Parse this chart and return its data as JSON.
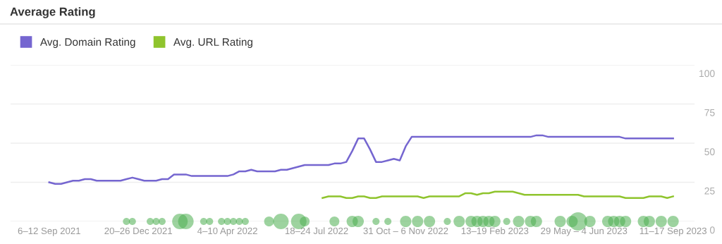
{
  "chart_data": {
    "type": "line",
    "title": "Average Rating",
    "categories": [
      "6–12 Sep 2021",
      null,
      null,
      null,
      null,
      null,
      null,
      null,
      null,
      null,
      null,
      null,
      null,
      null,
      null,
      "20–26 Dec 2021",
      null,
      null,
      null,
      null,
      null,
      null,
      null,
      null,
      null,
      null,
      null,
      null,
      null,
      null,
      "4–10 Apr 2022",
      null,
      null,
      null,
      null,
      null,
      null,
      null,
      null,
      null,
      null,
      null,
      null,
      null,
      null,
      "18–24 Jul 2022",
      null,
      null,
      null,
      null,
      null,
      null,
      null,
      null,
      null,
      null,
      null,
      null,
      null,
      null,
      "31 Oct – 6 Nov 2022",
      null,
      null,
      null,
      null,
      null,
      null,
      null,
      null,
      null,
      null,
      null,
      null,
      null,
      null,
      "13–19 Feb 2023",
      null,
      null,
      null,
      null,
      null,
      null,
      null,
      null,
      null,
      null,
      null,
      null,
      null,
      null,
      "29 May – 4 Jun 2023",
      null,
      null,
      null,
      null,
      null,
      null,
      null,
      null,
      null,
      null,
      null,
      null,
      null,
      null,
      "11–17 Sep 2023"
    ],
    "series": [
      {
        "name": "Avg. Domain Rating",
        "color": "#7566d0",
        "values": [
          25,
          24,
          24,
          25,
          26,
          26,
          27,
          27,
          26,
          26,
          26,
          26,
          26,
          27,
          28,
          27,
          26,
          26,
          26,
          27,
          27,
          30,
          30,
          30,
          29,
          29,
          29,
          29,
          29,
          29,
          29,
          30,
          32,
          32,
          33,
          32,
          32,
          32,
          32,
          33,
          33,
          34,
          35,
          36,
          36,
          36,
          36,
          36,
          37,
          37,
          38,
          45,
          53,
          53,
          46,
          38,
          38,
          39,
          40,
          39,
          48,
          54,
          54,
          54,
          54,
          54,
          54,
          54,
          54,
          54,
          54,
          54,
          54,
          54,
          54,
          54,
          54,
          54,
          54,
          54,
          54,
          54,
          55,
          55,
          54,
          54,
          54,
          54,
          54,
          54,
          54,
          54,
          54,
          54,
          54,
          54,
          54,
          53,
          53,
          53,
          53,
          53,
          53,
          53,
          53,
          53
        ]
      },
      {
        "name": "Avg. URL Rating",
        "color": "#8fc42d",
        "values": [
          null,
          null,
          null,
          null,
          null,
          null,
          null,
          null,
          null,
          null,
          null,
          null,
          null,
          null,
          null,
          null,
          null,
          null,
          null,
          null,
          null,
          null,
          null,
          null,
          null,
          null,
          null,
          null,
          null,
          null,
          null,
          null,
          null,
          null,
          null,
          null,
          null,
          null,
          null,
          null,
          null,
          null,
          null,
          null,
          null,
          null,
          15,
          16,
          16,
          16,
          15,
          15,
          16,
          16,
          15,
          15,
          16,
          16,
          16,
          16,
          16,
          16,
          16,
          15,
          16,
          16,
          16,
          16,
          16,
          16,
          18,
          18,
          17,
          18,
          18,
          19,
          19,
          19,
          19,
          18,
          17,
          17,
          17,
          17,
          17,
          17,
          17,
          17,
          17,
          17,
          16,
          16,
          16,
          16,
          16,
          16,
          16,
          15,
          15,
          15,
          15,
          16,
          16,
          16,
          15,
          16
        ]
      },
      {
        "type": "bubble",
        "color": "#4caf50",
        "values": [
          null,
          null,
          null,
          null,
          null,
          null,
          null,
          null,
          null,
          null,
          null,
          null,
          null,
          0,
          0,
          null,
          null,
          0,
          0,
          0,
          null,
          null,
          0,
          0,
          null,
          null,
          0,
          0,
          null,
          0,
          0,
          0,
          0,
          0,
          null,
          null,
          null,
          0,
          null,
          0,
          null,
          null,
          0,
          0,
          null,
          null,
          null,
          null,
          0,
          null,
          null,
          0,
          0,
          null,
          null,
          0,
          null,
          0,
          null,
          null,
          0,
          null,
          0,
          null,
          0,
          null,
          null,
          0,
          null,
          0,
          null,
          0,
          0,
          0,
          0,
          0,
          null,
          0,
          null,
          0,
          null,
          0,
          0,
          null,
          null,
          null,
          0,
          null,
          0,
          0,
          null,
          0,
          null,
          null,
          0,
          0,
          0,
          0,
          null,
          null,
          0,
          0,
          null,
          0,
          null,
          0
        ],
        "sizes": [
          null,
          null,
          null,
          null,
          null,
          null,
          null,
          null,
          null,
          null,
          null,
          null,
          null,
          0.15,
          0.15,
          null,
          null,
          0.15,
          0.15,
          0.15,
          null,
          null,
          0.72,
          0.72,
          null,
          null,
          0.15,
          0.15,
          null,
          0.15,
          0.15,
          0.15,
          0.15,
          0.15,
          null,
          null,
          null,
          0.29,
          null,
          0.72,
          null,
          null,
          0.72,
          0.29,
          null,
          null,
          null,
          null,
          0.29,
          null,
          null,
          0.38,
          0.38,
          null,
          null,
          0.15,
          null,
          0.15,
          null,
          null,
          0.38,
          null,
          0.38,
          null,
          0.38,
          null,
          null,
          0.15,
          null,
          0.38,
          null,
          0.38,
          0.38,
          0.38,
          0.38,
          0.38,
          null,
          0.15,
          null,
          0.38,
          null,
          0.38,
          0.38,
          null,
          null,
          null,
          0.38,
          null,
          0.38,
          1,
          null,
          0.38,
          null,
          null,
          0.38,
          0.38,
          0.38,
          0.38,
          null,
          null,
          0.38,
          0.38,
          null,
          0.38,
          null,
          0.38
        ]
      }
    ],
    "ylim": [
      0,
      100
    ],
    "yticks": [
      0,
      25,
      50,
      75,
      100
    ],
    "grid": "y",
    "legend": "top left"
  }
}
